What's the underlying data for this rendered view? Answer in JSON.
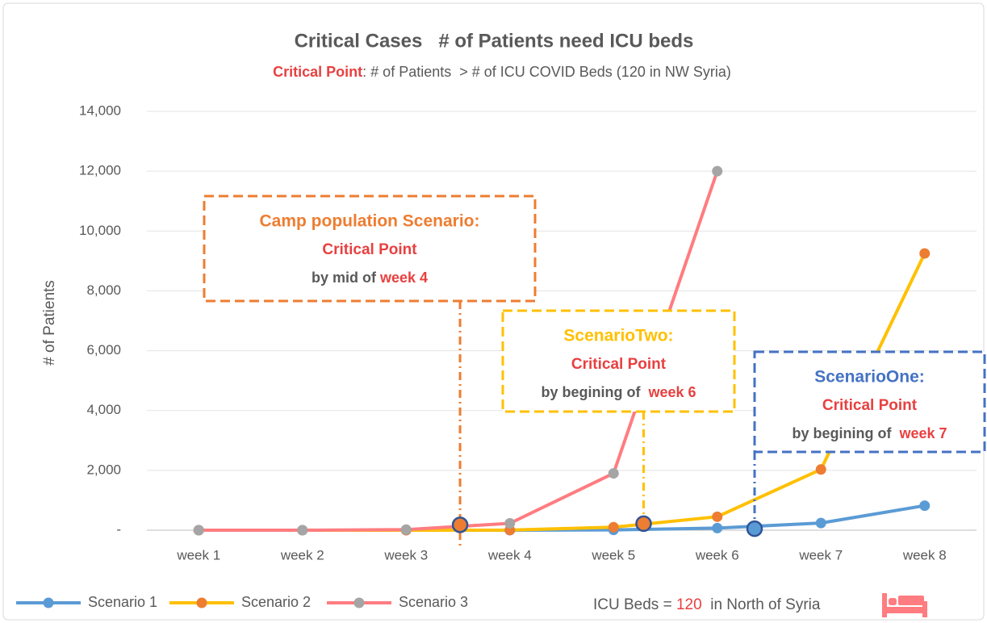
{
  "chart_data": {
    "type": "line",
    "title": "Critical Cases   # of Patients need ICU beds",
    "subtitle_highlight": "Critical Point",
    "subtitle": ": # of Patients  > # of ICU COVID Beds (120 in NW Syria)",
    "y_label": "# of Patients",
    "categories": [
      "week 1",
      "week 2",
      "week 3",
      "week 4",
      "week 5",
      "week 6",
      "week 7",
      "week 8"
    ],
    "series": [
      {
        "name": "Scenario 1",
        "color": "#5b9bd5",
        "marker_color": "#5b9bd5",
        "values": [
          0,
          0,
          0,
          0,
          10,
          70,
          240,
          820
        ]
      },
      {
        "name": "Scenario 2",
        "color": "#ffc000",
        "marker_color": "#ed7d31",
        "values": [
          0,
          0,
          0,
          5,
          100,
          450,
          2030,
          9250
        ]
      },
      {
        "name": "Scenario 3",
        "color": "#ff7c80",
        "marker_color": "#a5a5a5",
        "values": [
          0,
          0,
          20,
          230,
          1900,
          12000,
          null,
          null
        ]
      }
    ],
    "ylim": [
      0,
      14000
    ],
    "yticks": [
      {
        "value": 0,
        "label": "-"
      },
      {
        "value": 2000,
        "label": "2,000"
      },
      {
        "value": 4000,
        "label": "4,000"
      },
      {
        "value": 6000,
        "label": "6,000"
      },
      {
        "value": 8000,
        "label": "8,000"
      },
      {
        "value": 10000,
        "label": "10,000"
      },
      {
        "value": 12000,
        "label": "12,000"
      },
      {
        "value": 14000,
        "label": "14,000"
      }
    ],
    "grid": true,
    "legend": "bottom-left",
    "critical_points": [
      {
        "x": 3.52,
        "y": 180
      },
      {
        "x": 5.29,
        "y": 220
      },
      {
        "x": 6.36,
        "y": 50
      }
    ],
    "annotations": [
      {
        "title": "Camp population Scenario:",
        "subtitle": "Critical Point",
        "text": "by mid of ",
        "highlight": "week 4",
        "color": "#ed7d31"
      },
      {
        "title": "ScenarioTwo:",
        "subtitle": "Critical Point",
        "text": "by begining of  ",
        "highlight": "week 6",
        "color": "#ffc000"
      },
      {
        "title": "ScenarioOne:",
        "subtitle": "Critical Point",
        "text": "by begining of  ",
        "highlight": "week 7",
        "color": "#4472c4"
      }
    ],
    "footer": {
      "text": "ICU Beds = ",
      "value": 120,
      "suffix": "  in North of Syria"
    }
  }
}
